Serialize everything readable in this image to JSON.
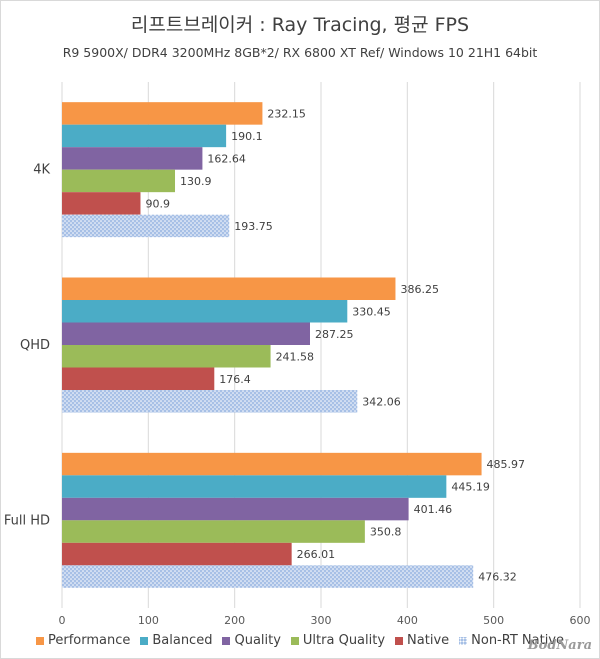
{
  "chart_data": {
    "type": "bar",
    "orientation": "horizontal",
    "title": "리프트브레이커 : Ray Tracing, 평균 FPS",
    "subtitle": "R9 5900X/ DDR4 3200MHz 8GB*2/ RX 6800 XT Ref/ Windows 10 21H1 64bit",
    "categories": [
      "4K",
      "QHD",
      "Full HD"
    ],
    "series": [
      {
        "name": "Performance",
        "color": "#f79646",
        "values": [
          232.15,
          386.25,
          485.97
        ]
      },
      {
        "name": "Balanced",
        "color": "#4bacc6",
        "values": [
          190.1,
          330.45,
          445.19
        ]
      },
      {
        "name": "Quality",
        "color": "#8064a2",
        "values": [
          162.64,
          287.25,
          401.46
        ]
      },
      {
        "name": "Ultra Quality",
        "color": "#9bbb59",
        "values": [
          130.9,
          241.58,
          350.8
        ]
      },
      {
        "name": "Native",
        "color": "#c0504d",
        "values": [
          90.9,
          176.4,
          266.01
        ]
      },
      {
        "name": "Non-RT Native",
        "color": "#a7c0e6",
        "values": [
          193.75,
          342.06,
          476.32
        ],
        "pattern": "dotted"
      }
    ],
    "data_labels": [
      [
        "232.15",
        "190.1",
        "162.64",
        "130.9",
        "90.9",
        "193.75"
      ],
      [
        "386.25",
        "330.45",
        "287.25",
        "241.58",
        "176.4",
        "342.06"
      ],
      [
        "485.97",
        "445.19",
        "401.46",
        "350.8",
        "266.01",
        "476.32"
      ]
    ],
    "xlim": [
      0,
      600
    ],
    "xticks": [
      "0",
      "100",
      "200",
      "300",
      "400",
      "500",
      "600"
    ],
    "grid": "vertical",
    "legend": "bottom"
  },
  "watermark": "BodNara"
}
